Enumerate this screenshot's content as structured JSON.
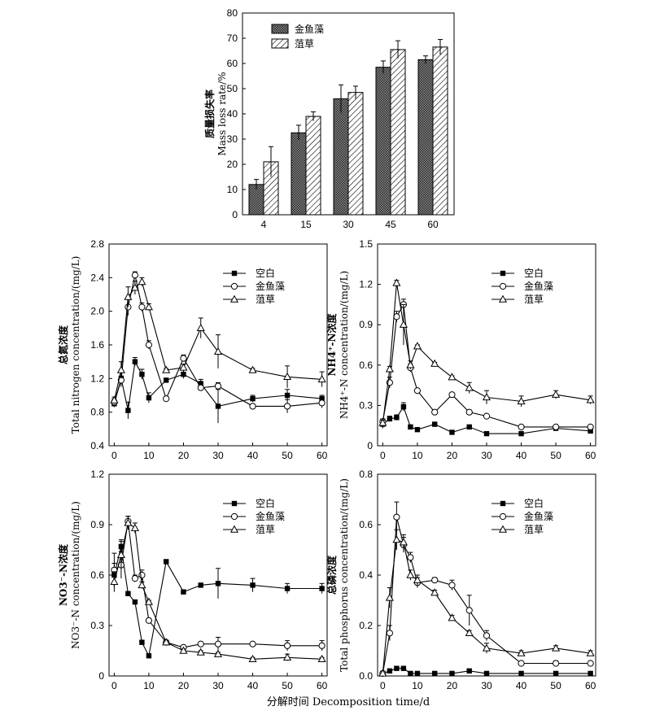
{
  "figure": {
    "shared_xlabel": "分解时间 Decomposition time/d"
  },
  "chart_data": [
    {
      "id": "mass",
      "type": "bar",
      "ylabel_cn": "质量损失率",
      "ylabel_en": "Mass loss rate/%",
      "categories": [
        "4",
        "15",
        "30",
        "45",
        "60"
      ],
      "ylim": [
        0,
        80
      ],
      "yticks": [
        0,
        10,
        20,
        30,
        40,
        50,
        60,
        70,
        80
      ],
      "legend_position": "top-left",
      "series": [
        {
          "name": "金鱼藻",
          "pattern": "dots",
          "values": [
            12,
            32.5,
            46,
            58.5,
            61.5
          ],
          "err": [
            2,
            3,
            5.5,
            2.5,
            1.5
          ]
        },
        {
          "name": "菹草",
          "pattern": "hatch",
          "values": [
            21,
            39,
            48.5,
            65.5,
            66.5
          ],
          "err": [
            6,
            1.8,
            2.5,
            3.5,
            3
          ]
        }
      ]
    },
    {
      "id": "tn",
      "type": "line",
      "ylabel_cn": "总氮浓度",
      "ylabel_en": "Total nitrogen concentration/(mg/L)",
      "ylim": [
        0.4,
        2.8
      ],
      "yticks": [
        "0.4",
        "0.8",
        "1.2",
        "1.6",
        "2.0",
        "2.4",
        "2.8"
      ],
      "xticks": [
        0,
        10,
        20,
        30,
        40,
        50,
        60
      ],
      "legend_position": "top-center",
      "series": [
        {
          "name": "空白",
          "marker": "square",
          "x": [
            0,
            2,
            4,
            6,
            8,
            10,
            15,
            20,
            25,
            30,
            40,
            50,
            60
          ],
          "y": [
            0.9,
            1.2,
            0.82,
            1.4,
            1.25,
            0.97,
            1.18,
            1.25,
            1.14,
            0.87,
            0.96,
            1.0,
            0.96
          ],
          "err": [
            0.04,
            0.1,
            0.1,
            0.05,
            0.06,
            0.06,
            0.02,
            0.05,
            0.05,
            0.2,
            0.04,
            0.07,
            0.04
          ]
        },
        {
          "name": "金鱼藻",
          "marker": "circle",
          "x": [
            0,
            2,
            4,
            6,
            8,
            10,
            15,
            20,
            25,
            30,
            40,
            50,
            60
          ],
          "y": [
            0.92,
            1.18,
            2.05,
            2.43,
            2.05,
            1.6,
            0.96,
            1.44,
            1.09,
            1.11,
            0.87,
            0.87,
            0.91
          ],
          "err": [
            0.04,
            0.05,
            0.1,
            0.04,
            0.05,
            0.05,
            0.02,
            0.04,
            0.03,
            0.04,
            0.02,
            0.08,
            0.06
          ]
        },
        {
          "name": "菹草",
          "marker": "triangle",
          "x": [
            0,
            2,
            4,
            6,
            8,
            10,
            15,
            20,
            25,
            30,
            40,
            50,
            60
          ],
          "y": [
            0.94,
            1.3,
            2.17,
            2.28,
            2.35,
            2.05,
            1.3,
            1.33,
            1.8,
            1.52,
            1.3,
            1.22,
            1.19
          ],
          "err": [
            0.04,
            0.1,
            0.12,
            0.08,
            0.05,
            0.04,
            0.02,
            0.04,
            0.12,
            0.2,
            0.02,
            0.13,
            0.09
          ]
        }
      ]
    },
    {
      "id": "nh4",
      "type": "line",
      "ylabel_cn": "NH4⁺-N浓度",
      "ylabel_en": "NH4⁺-N concentration/(mg/L)",
      "ylim": [
        0,
        1.5
      ],
      "yticks": [
        "0",
        "0.3",
        "0.6",
        "0.9",
        "1.2",
        "1.5"
      ],
      "xticks": [
        0,
        10,
        20,
        30,
        40,
        50,
        60
      ],
      "legend_position": "top-center",
      "series": [
        {
          "name": "空白",
          "marker": "square",
          "x": [
            0,
            2,
            4,
            6,
            8,
            10,
            15,
            20,
            25,
            30,
            40,
            50,
            60
          ],
          "y": [
            0.16,
            0.2,
            0.21,
            0.29,
            0.14,
            0.12,
            0.16,
            0.1,
            0.14,
            0.09,
            0.09,
            0.13,
            0.11
          ],
          "err": [
            0.03,
            0.02,
            0.02,
            0.03,
            0.01,
            0.01,
            0.01,
            0.01,
            0.01,
            0.01,
            0.01,
            0.02,
            0.01
          ]
        },
        {
          "name": "金鱼藻",
          "marker": "circle",
          "x": [
            0,
            2,
            4,
            6,
            8,
            10,
            15,
            20,
            25,
            30,
            40,
            50,
            60
          ],
          "y": [
            0.18,
            0.47,
            0.96,
            1.05,
            0.58,
            0.41,
            0.25,
            0.38,
            0.25,
            0.22,
            0.14,
            0.14,
            0.14
          ],
          "err": [
            0.02,
            0.04,
            0.04,
            0.04,
            0.03,
            0.01,
            0.01,
            0.01,
            0.01,
            0.01,
            0.01,
            0.01,
            0.01
          ]
        },
        {
          "name": "菹草",
          "marker": "triangle",
          "x": [
            0,
            2,
            4,
            6,
            8,
            10,
            15,
            20,
            25,
            30,
            40,
            50,
            60
          ],
          "y": [
            0.17,
            0.57,
            1.21,
            0.9,
            0.6,
            0.74,
            0.61,
            0.51,
            0.43,
            0.36,
            0.33,
            0.38,
            0.34
          ],
          "err": [
            0.02,
            0.02,
            0.02,
            0.15,
            0.03,
            0.01,
            0.01,
            0.01,
            0.04,
            0.05,
            0.04,
            0.03,
            0.03
          ]
        }
      ]
    },
    {
      "id": "no3",
      "type": "line",
      "ylabel_cn": "NO3⁻-N浓度",
      "ylabel_en": "NO3⁻-N concentration/(mg/L)",
      "ylim": [
        0,
        1.2
      ],
      "yticks": [
        "0",
        "0.3",
        "0.6",
        "0.9",
        "1.2"
      ],
      "xticks": [
        0,
        10,
        20,
        30,
        40,
        50,
        60
      ],
      "legend_position": "top-center",
      "series": [
        {
          "name": "空白",
          "marker": "square",
          "x": [
            0,
            2,
            4,
            6,
            8,
            10,
            15,
            20,
            25,
            30,
            40,
            50,
            60
          ],
          "y": [
            0.6,
            0.77,
            0.49,
            0.44,
            0.2,
            0.12,
            0.68,
            0.5,
            0.54,
            0.55,
            0.54,
            0.52,
            0.52
          ],
          "err": [
            0.07,
            0.04,
            0.01,
            0.01,
            0.01,
            0.01,
            0.01,
            0.01,
            0.01,
            0.09,
            0.04,
            0.03,
            0.03
          ]
        },
        {
          "name": "金鱼藻",
          "marker": "circle",
          "x": [
            0,
            2,
            4,
            6,
            8,
            10,
            15,
            20,
            25,
            30,
            40,
            50,
            60
          ],
          "y": [
            0.63,
            0.66,
            0.92,
            0.58,
            0.6,
            0.33,
            0.2,
            0.17,
            0.19,
            0.19,
            0.19,
            0.18,
            0.18
          ],
          "err": [
            0.1,
            0.08,
            0.03,
            0.02,
            0.03,
            0.01,
            0.01,
            0.01,
            0.01,
            0.04,
            0.01,
            0.03,
            0.03
          ]
        },
        {
          "name": "菹草",
          "marker": "triangle",
          "x": [
            0,
            2,
            4,
            6,
            8,
            10,
            15,
            20,
            25,
            30,
            40,
            50,
            60
          ],
          "y": [
            0.56,
            0.72,
            0.91,
            0.88,
            0.54,
            0.44,
            0.2,
            0.15,
            0.14,
            0.13,
            0.1,
            0.11,
            0.1
          ],
          "err": [
            0.06,
            0.08,
            0.04,
            0.03,
            0.02,
            0.01,
            0.01,
            0.01,
            0.01,
            0.01,
            0.01,
            0.02,
            0.01
          ]
        }
      ]
    },
    {
      "id": "tp",
      "type": "line",
      "ylabel_cn": "总磷浓度",
      "ylabel_en": "Total phosphorus concentration/(mg/L)",
      "ylim": [
        0,
        0.8
      ],
      "yticks": [
        "0.0",
        "0.2",
        "0.4",
        "0.6",
        "0.8"
      ],
      "xticks": [
        0,
        10,
        20,
        30,
        40,
        50,
        60
      ],
      "legend_position": "top-center",
      "series": [
        {
          "name": "空白",
          "marker": "square",
          "x": [
            0,
            2,
            4,
            6,
            8,
            10,
            15,
            20,
            25,
            30,
            40,
            50,
            60
          ],
          "y": [
            0.01,
            0.02,
            0.03,
            0.03,
            0.01,
            0.01,
            0.01,
            0.01,
            0.02,
            0.01,
            0.01,
            0.01,
            0.01
          ],
          "err": [
            0,
            0,
            0,
            0,
            0,
            0,
            0,
            0,
            0,
            0,
            0,
            0,
            0
          ]
        },
        {
          "name": "金鱼藻",
          "marker": "circle",
          "x": [
            0,
            2,
            4,
            6,
            8,
            10,
            15,
            20,
            25,
            30,
            40,
            50,
            60
          ],
          "y": [
            0.01,
            0.17,
            0.63,
            0.52,
            0.47,
            0.37,
            0.38,
            0.36,
            0.26,
            0.16,
            0.05,
            0.05,
            0.05
          ],
          "err": [
            0,
            0.03,
            0.06,
            0.03,
            0.02,
            0.02,
            0.01,
            0.02,
            0.06,
            0.02,
            0,
            0.01,
            0
          ]
        },
        {
          "name": "菹草",
          "marker": "triangle",
          "x": [
            0,
            2,
            4,
            6,
            8,
            10,
            15,
            20,
            25,
            30,
            40,
            50,
            60
          ],
          "y": [
            0.01,
            0.31,
            0.54,
            0.53,
            0.4,
            0.38,
            0.33,
            0.23,
            0.17,
            0.11,
            0.09,
            0.11,
            0.09
          ],
          "err": [
            0,
            0.04,
            0.04,
            0.03,
            0.02,
            0.02,
            0.01,
            0.01,
            0.01,
            0.02,
            0.01,
            0.01,
            0.01
          ]
        }
      ]
    }
  ]
}
